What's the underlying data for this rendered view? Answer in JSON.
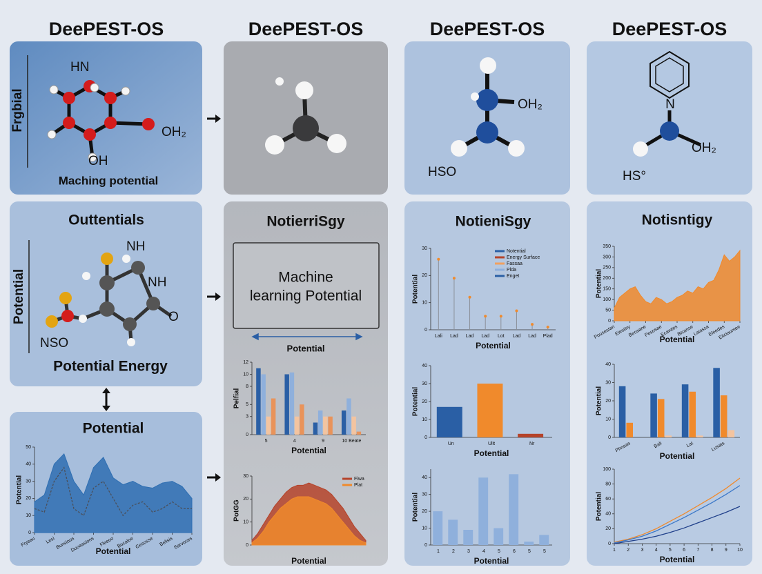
{
  "column_titles": [
    "DeePEST-OS",
    "DeePEST-OS",
    "DeePEST-OS",
    "DeePEST-OS"
  ],
  "panels": {
    "top_left": {
      "side_label": "Frgbial",
      "labels": [
        "HN",
        "OH₂",
        "OH"
      ],
      "caption": "Maching potential"
    },
    "top_3": {
      "labels": [
        "OH₂",
        "HSO"
      ]
    },
    "top_4": {
      "labels": [
        "N",
        "OH₂",
        "HS°"
      ]
    },
    "energy": {
      "title": "Outtentials",
      "side_label": "Potential",
      "labels": [
        "NH",
        "NH",
        "O",
        "NSO"
      ],
      "caption": "Potential Energy"
    },
    "ml": {
      "title": "NotierriSgy",
      "box": [
        "Machine",
        "learning Potential"
      ],
      "arrow_label": "Potential"
    }
  },
  "chart_data": [
    {
      "type": "area",
      "title": "Potential",
      "xlabel": "Potential",
      "ylabel": "Potential",
      "x": [
        0,
        1,
        2,
        3,
        4,
        5,
        6,
        7,
        8,
        9,
        10,
        11,
        12,
        13,
        14,
        15,
        16
      ],
      "xlim": [
        0,
        16
      ],
      "xticks": [
        {
          "value": 0,
          "label": "Fryeau"
        },
        {
          "value": 2,
          "label": "Lesi"
        },
        {
          "value": 4,
          "label": "Bunsious"
        },
        {
          "value": 6,
          "label": "Duoeasions"
        },
        {
          "value": 8,
          "label": "Fleeoo"
        },
        {
          "value": 10,
          "label": "Bucaloe"
        },
        {
          "value": 12,
          "label": "Gesosse"
        },
        {
          "value": 14,
          "label": "Belisis"
        },
        {
          "value": 16,
          "label": "Sarvoces"
        }
      ],
      "ylim": [
        0,
        50
      ],
      "yticks": [
        0,
        10,
        20,
        30,
        40,
        50
      ],
      "series": [
        {
          "color": "#2f6fb2",
          "fill": true,
          "values": [
            18,
            22,
            40,
            46,
            30,
            22,
            38,
            44,
            32,
            28,
            30,
            27,
            26,
            29,
            30,
            27,
            20
          ]
        },
        {
          "color": "#4a4f5a",
          "fill": false,
          "values": [
            14,
            12,
            30,
            38,
            14,
            10,
            26,
            30,
            20,
            10,
            16,
            18,
            12,
            14,
            18,
            14,
            14
          ]
        }
      ]
    },
    {
      "type": "bar",
      "xlabel": "Potential",
      "ylabel": "Pelfial",
      "categories": [
        "5",
        "4",
        "9",
        "10 Beate"
      ],
      "ylim": [
        0,
        12
      ],
      "yticks": [
        0,
        3,
        5,
        8,
        10,
        12
      ],
      "series": [
        {
          "color": "#2a5fa5",
          "values": [
            11,
            10,
            2,
            4
          ]
        },
        {
          "color": "#8fb0dc",
          "values": [
            10,
            10.3,
            4,
            6
          ]
        },
        {
          "color": "#f3c4a0",
          "values": [
            3,
            3,
            3,
            3
          ]
        },
        {
          "color": "#e9935a",
          "values": [
            6,
            5,
            3,
            0.5
          ]
        }
      ]
    },
    {
      "type": "area",
      "xlabel": "Potential",
      "ylabel": "PotGG",
      "x": [
        0,
        1,
        2,
        3,
        4,
        5,
        6,
        7,
        8,
        9,
        10,
        11,
        12,
        13,
        14,
        15,
        16,
        17,
        18,
        19,
        20
      ],
      "xlim": [
        0,
        20
      ],
      "ylim": [
        0,
        30
      ],
      "yticks": [
        0,
        10,
        20,
        30
      ],
      "series": [
        {
          "name": "Fiwa",
          "color": "#b5432a",
          "fill": true,
          "values": [
            2,
            5,
            9,
            13,
            17,
            20,
            23,
            25,
            26,
            26,
            27,
            26,
            25,
            24,
            22,
            19,
            16,
            12,
            8,
            5,
            2
          ]
        },
        {
          "name": "Plat",
          "color": "#f08a2c",
          "fill": true,
          "values": [
            1,
            3,
            6,
            10,
            13,
            16,
            18,
            20,
            21,
            21,
            21,
            20,
            19,
            18,
            16,
            13,
            10,
            7,
            4,
            2,
            1
          ]
        }
      ]
    },
    {
      "type": "stem",
      "title": "NotieniSgy",
      "xlabel": "Potential",
      "ylabel": "Potential",
      "categories": [
        "Lali",
        "Lad",
        "Lad",
        "Lad",
        "Lot",
        "Lad",
        "Lad",
        "Plad"
      ],
      "ylim": [
        0,
        30
      ],
      "yticks": [
        0,
        10,
        20,
        30
      ],
      "series": [
        {
          "color": "#8a8f98",
          "marker_color": "#f08a2c",
          "values": [
            26,
            19,
            12,
            5,
            5,
            7,
            2,
            1
          ]
        }
      ],
      "legend": [
        {
          "name": "Notential",
          "color": "#2a5fa5"
        },
        {
          "name": "Energy Surface",
          "color": "#b5432a"
        },
        {
          "name": "Fassaa",
          "color": "#f0a060"
        },
        {
          "name": "Plda",
          "color": "#8fb0dc"
        },
        {
          "name": "Enget",
          "color": "#2a5fa5"
        }
      ]
    },
    {
      "type": "bar",
      "xlabel": "Potential",
      "ylabel": "Potential",
      "categories": [
        "Un",
        "Ulit",
        "Nr"
      ],
      "ylim": [
        0,
        40
      ],
      "yticks": [
        0,
        10,
        20,
        30,
        40
      ],
      "series": [
        {
          "colors": [
            "#2a5fa5",
            "#f08a2c",
            "#b5432a"
          ],
          "values": [
            17,
            30,
            2
          ]
        }
      ]
    },
    {
      "type": "bar",
      "xlabel": "Potential",
      "ylabel": "Potential",
      "categories": [
        "1",
        "2",
        "3",
        "4",
        "5",
        "6",
        "5",
        "5"
      ],
      "ylim": [
        0,
        45
      ],
      "yticks": [
        0,
        10,
        20,
        30,
        40
      ],
      "series": [
        {
          "color": "#8fb0dc",
          "values": [
            20,
            15,
            9,
            40,
            10,
            42,
            2,
            6
          ]
        }
      ]
    },
    {
      "type": "area",
      "title": "Notisntigy",
      "xlabel": "Potential",
      "ylabel": "Potential",
      "x": [
        0,
        1,
        2,
        3,
        4,
        5,
        6,
        7,
        8,
        9,
        10,
        11,
        12,
        13,
        14,
        15,
        16,
        17,
        18,
        19,
        20,
        21,
        22,
        23,
        24
      ],
      "xlim": [
        0,
        24
      ],
      "xticks": [
        {
          "value": 0,
          "label": "Pousestan"
        },
        {
          "value": 3,
          "label": "Elesiiny"
        },
        {
          "value": 6,
          "label": "Becaane"
        },
        {
          "value": 9,
          "label": "Pesosae"
        },
        {
          "value": 12,
          "label": "Ecawtes"
        },
        {
          "value": 15,
          "label": "Bicanse"
        },
        {
          "value": 18,
          "label": "Laiassa"
        },
        {
          "value": 21,
          "label": "Eleedes"
        },
        {
          "value": 24,
          "label": "Eitciaumee"
        }
      ],
      "ylim": [
        0,
        350
      ],
      "yticks": [
        0,
        50,
        100,
        150,
        200,
        250,
        300,
        350
      ],
      "series": [
        {
          "color": "#f08a2c",
          "fill": true,
          "values": [
            60,
            110,
            130,
            150,
            160,
            120,
            90,
            80,
            110,
            100,
            80,
            90,
            110,
            120,
            140,
            130,
            160,
            150,
            180,
            190,
            240,
            310,
            280,
            300,
            330
          ]
        }
      ]
    },
    {
      "type": "bar",
      "xlabel": "Potential",
      "ylabel": "Potential",
      "categories": [
        "Phnaas",
        "Bali",
        "Lat",
        "Lusats"
      ],
      "ylim": [
        0,
        40
      ],
      "yticks": [
        0,
        10,
        20,
        30,
        40
      ],
      "series": [
        {
          "color": "#2a5fa5",
          "values": [
            28,
            24,
            29,
            38
          ]
        },
        {
          "color": "#f08a2c",
          "values": [
            8,
            21,
            25,
            23
          ]
        },
        {
          "color": "#f3c4a0",
          "values": [
            0,
            1,
            1,
            4
          ]
        }
      ]
    },
    {
      "type": "line",
      "xlabel": "Potential",
      "ylabel": "Potential",
      "x": [
        1,
        2,
        3,
        4,
        5,
        6,
        7,
        8,
        9,
        10
      ],
      "xlim": [
        1,
        10
      ],
      "xticks": [
        1,
        2,
        3,
        4,
        5,
        6,
        7,
        8,
        9,
        10
      ],
      "ylim": [
        0,
        100
      ],
      "yticks": [
        0,
        20,
        40,
        60,
        80,
        100
      ],
      "series": [
        {
          "color": "#f08a2c",
          "values": [
            2,
            6,
            12,
            20,
            30,
            40,
            51,
            62,
            74,
            88
          ]
        },
        {
          "color": "#3c78c8",
          "values": [
            1,
            5,
            10,
            17,
            26,
            35,
            45,
            55,
            66,
            78
          ]
        },
        {
          "color": "#1f3f8a",
          "values": [
            0,
            3,
            6,
            10,
            15,
            21,
            28,
            35,
            42,
            50
          ]
        }
      ]
    }
  ]
}
